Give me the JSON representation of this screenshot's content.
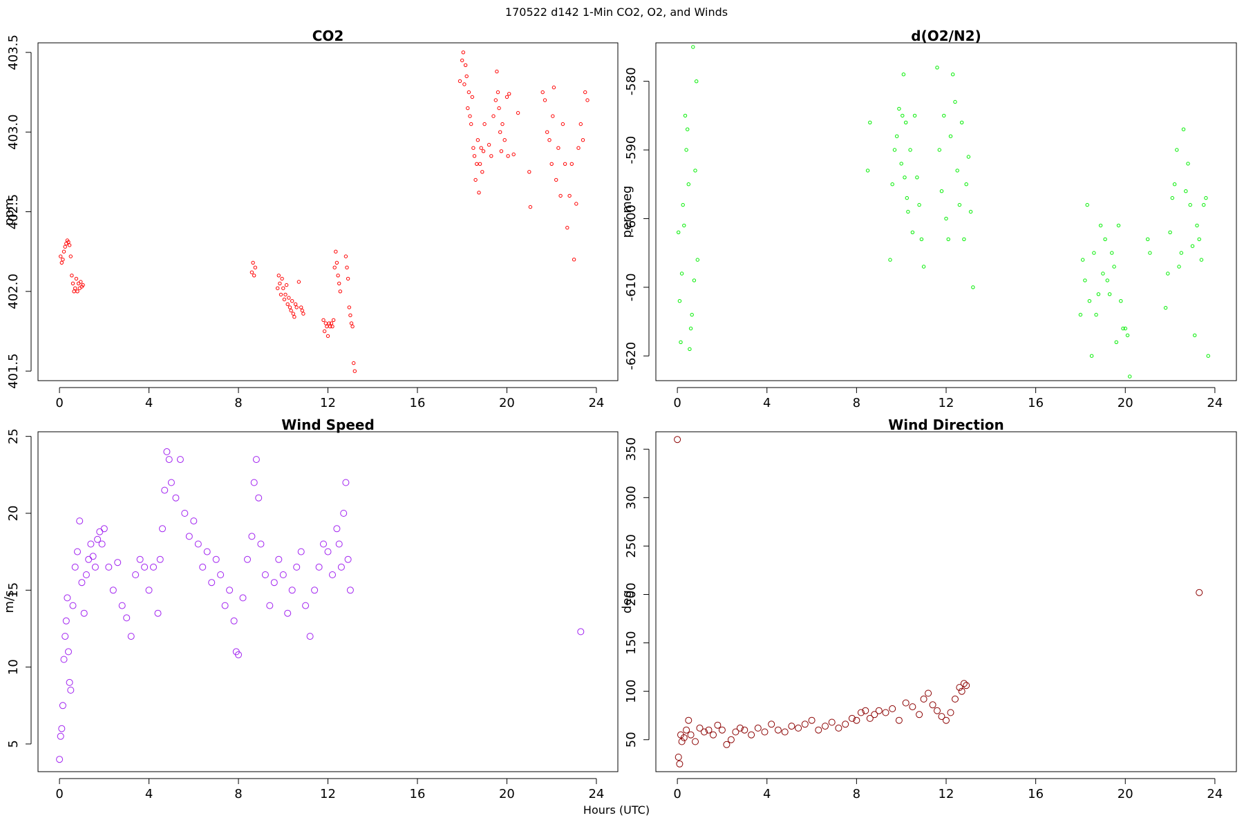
{
  "page": {
    "title": "170522   d142   1-Min CO2, O2, and Winds",
    "xlabel": "Hours (UTC)"
  },
  "chart_data": [
    {
      "type": "scatter",
      "title": "CO2",
      "xlabel": "",
      "ylabel": "ppm",
      "xlim": [
        -0.96,
        24.96
      ],
      "ylim": [
        401.44,
        403.56
      ],
      "xticks": [
        0,
        4,
        8,
        12,
        16,
        20,
        24
      ],
      "yticks": [
        401.5,
        402.0,
        402.5,
        403.0,
        403.5
      ],
      "yticklabels": [
        "401.5",
        "402.0",
        "402.5",
        "403.0",
        "403.5"
      ],
      "color": "#ff0000",
      "series": [
        {
          "x": [
            0.05,
            0.1,
            0.15,
            0.2,
            0.25,
            0.3,
            0.35,
            0.4,
            0.45,
            0.5,
            0.55,
            0.6,
            0.65,
            0.7,
            0.75,
            0.8,
            0.85,
            0.9,
            0.95,
            1.0,
            1.05
          ],
          "y": [
            402.22,
            402.18,
            402.2,
            402.25,
            402.28,
            402.3,
            402.32,
            402.31,
            402.29,
            402.22,
            402.1,
            402.05,
            402.0,
            402.02,
            402.08,
            402.0,
            402.05,
            402.02,
            402.06,
            402.03,
            402.04
          ]
        },
        {
          "x": [
            8.6,
            8.65,
            8.7,
            8.75,
            9.75,
            9.8,
            9.85,
            9.9,
            9.95,
            10.0,
            10.05,
            10.1,
            10.15,
            10.2,
            10.25,
            10.3,
            10.35,
            10.4,
            10.45,
            10.5,
            10.55,
            10.6,
            10.7,
            10.8,
            10.85,
            10.9
          ],
          "y": [
            402.12,
            402.18,
            402.1,
            402.15,
            402.02,
            402.1,
            402.05,
            401.98,
            402.08,
            402.02,
            401.95,
            401.98,
            402.04,
            401.92,
            401.96,
            401.9,
            401.88,
            401.94,
            401.86,
            401.84,
            401.92,
            401.9,
            402.06,
            401.9,
            401.88,
            401.86
          ]
        },
        {
          "x": [
            11.8,
            11.85,
            11.9,
            11.95,
            12.0,
            12.05,
            12.1,
            12.15,
            12.2,
            12.25,
            12.3,
            12.35,
            12.4,
            12.45,
            12.5,
            12.55,
            12.8,
            12.85,
            12.9,
            12.95,
            13.0,
            13.05,
            13.1,
            13.15,
            13.2
          ],
          "y": [
            401.82,
            401.75,
            401.8,
            401.78,
            401.72,
            401.8,
            401.78,
            401.8,
            401.78,
            401.82,
            402.15,
            402.25,
            402.18,
            402.1,
            402.05,
            402.0,
            402.22,
            402.15,
            402.08,
            401.9,
            401.85,
            401.8,
            401.78,
            401.55,
            401.5
          ]
        },
        {
          "x": [
            17.9,
            18.0,
            18.05,
            18.1,
            18.15,
            18.2,
            18.25,
            18.3,
            18.35,
            18.4,
            18.45,
            18.5,
            18.55,
            18.6,
            18.65,
            18.7,
            18.75,
            18.8,
            18.85,
            18.9,
            18.95,
            19.0,
            19.2,
            19.3,
            19.4,
            19.5,
            19.55,
            19.6,
            19.65,
            19.7,
            19.75,
            19.8,
            19.9,
            20.0,
            20.05,
            20.1,
            20.3,
            20.5
          ],
          "y": [
            403.32,
            403.45,
            403.5,
            403.3,
            403.42,
            403.35,
            403.15,
            403.25,
            403.1,
            403.05,
            403.22,
            402.9,
            402.85,
            402.7,
            402.8,
            402.95,
            402.62,
            402.8,
            402.9,
            402.75,
            402.88,
            403.05,
            402.92,
            402.85,
            403.1,
            403.2,
            403.38,
            403.25,
            403.15,
            403.0,
            402.88,
            403.05,
            402.95,
            403.22,
            402.85,
            403.24,
            402.86,
            403.12
          ]
        },
        {
          "x": [
            21.0,
            21.05,
            21.6,
            21.7,
            21.8,
            21.9,
            22.0,
            22.05,
            22.1,
            22.2,
            22.3,
            22.4,
            22.5,
            22.6,
            22.7,
            22.8,
            22.9,
            23.0,
            23.1,
            23.2,
            23.3,
            23.4,
            23.5,
            23.6
          ],
          "y": [
            402.75,
            402.53,
            403.25,
            403.2,
            403.0,
            402.95,
            402.8,
            403.1,
            403.28,
            402.7,
            402.9,
            402.6,
            403.05,
            402.8,
            402.4,
            402.6,
            402.8,
            402.2,
            402.55,
            402.9,
            403.05,
            402.95,
            403.25,
            403.2
          ]
        }
      ]
    },
    {
      "type": "scatter",
      "title": "d(O2/N2)",
      "xlabel": "",
      "ylabel": "per meg",
      "xlim": [
        -0.96,
        24.96
      ],
      "ylim": [
        -623.6,
        -574.4
      ],
      "xticks": [
        0,
        4,
        8,
        12,
        16,
        20,
        24
      ],
      "yticks": [
        -580,
        -590,
        -600,
        -610,
        -620
      ],
      "yticklabels": [
        "-580",
        "-590",
        "-600",
        "-610",
        "-620"
      ],
      "color": "#00ee00",
      "series": [
        {
          "x": [
            0.05,
            0.1,
            0.15,
            0.2,
            0.25,
            0.3,
            0.35,
            0.4,
            0.45,
            0.5,
            0.55,
            0.6,
            0.65,
            0.7,
            0.75,
            0.8,
            0.85,
            0.9
          ],
          "y": [
            -602,
            -612,
            -618,
            -608,
            -598,
            -601,
            -585,
            -590,
            -587,
            -595,
            -619,
            -616,
            -614,
            -575,
            -609,
            -593,
            -580,
            -606
          ]
        },
        {
          "x": [
            8.5,
            8.6,
            9.5,
            9.6,
            9.7,
            9.8,
            9.9,
            10.0,
            10.05,
            10.1,
            10.15,
            10.2,
            10.25,
            10.3,
            10.4,
            10.5,
            10.6,
            10.7,
            10.8,
            10.9,
            11.0,
            11.6,
            11.7,
            11.8,
            11.9,
            12.0,
            12.1,
            12.2,
            12.3,
            12.4,
            12.5,
            12.6,
            12.7,
            12.8,
            12.9,
            13.0,
            13.1,
            13.2
          ],
          "y": [
            -593,
            -586,
            -606,
            -595,
            -590,
            -588,
            -584,
            -592,
            -585,
            -579,
            -594,
            -586,
            -597,
            -599,
            -590,
            -602,
            -585,
            -594,
            -598,
            -603,
            -607,
            -578,
            -590,
            -596,
            -585,
            -600,
            -603,
            -588,
            -579,
            -583,
            -593,
            -598,
            -586,
            -603,
            -595,
            -591,
            -599,
            -610
          ]
        },
        {
          "x": [
            18.0,
            18.1,
            18.2,
            18.3,
            18.4,
            18.5,
            18.6,
            18.7,
            18.8,
            18.9,
            19.0,
            19.1,
            19.2,
            19.3,
            19.4,
            19.5,
            19.6,
            19.7,
            19.8,
            19.9,
            20.0,
            20.1,
            20.2
          ],
          "y": [
            -614,
            -606,
            -609,
            -598,
            -612,
            -620,
            -605,
            -614,
            -611,
            -601,
            -608,
            -603,
            -609,
            -611,
            -605,
            -607,
            -618,
            -601,
            -612,
            -616,
            -616,
            -617,
            -623
          ]
        },
        {
          "x": [
            21.0,
            21.1,
            21.8,
            21.9,
            22.0,
            22.1,
            22.2,
            22.3,
            22.4,
            22.5,
            22.6,
            22.7,
            22.8,
            22.9,
            23.0,
            23.1,
            23.2,
            23.3,
            23.4,
            23.5,
            23.6,
            23.7
          ],
          "y": [
            -603,
            -605,
            -613,
            -608,
            -602,
            -597,
            -595,
            -590,
            -607,
            -605,
            -587,
            -596,
            -592,
            -598,
            -604,
            -617,
            -601,
            -603,
            -606,
            -598,
            -597,
            -620
          ]
        }
      ]
    },
    {
      "type": "scatter",
      "title": "Wind Speed",
      "xlabel": "",
      "ylabel": "m/s",
      "xlim": [
        -0.96,
        24.96
      ],
      "ylim": [
        3.2,
        25.3
      ],
      "xticks": [
        0,
        4,
        8,
        12,
        16,
        20,
        24
      ],
      "yticks": [
        5,
        10,
        15,
        20,
        25
      ],
      "yticklabels": [
        "5",
        "10",
        "15",
        "20",
        "25"
      ],
      "color": "#a020f0",
      "series": [
        {
          "x": [
            0.0,
            0.05,
            0.1,
            0.15,
            0.2,
            0.25,
            0.3,
            0.35,
            0.4,
            0.45,
            0.5,
            0.6,
            0.7,
            0.8,
            0.9,
            1.0,
            1.1,
            1.2,
            1.3,
            1.4,
            1.5,
            1.6,
            1.7,
            1.8,
            1.9,
            2.0,
            2.2,
            2.4,
            2.6,
            2.8,
            3.0,
            3.2,
            3.4,
            3.6,
            3.8,
            4.0,
            4.2,
            4.4,
            4.5,
            4.6,
            4.7,
            4.8,
            4.9,
            5.0,
            5.2,
            5.4,
            5.6,
            5.8,
            6.0,
            6.2,
            6.4,
            6.6,
            6.8,
            7.0,
            7.2,
            7.4,
            7.6,
            7.8,
            7.9,
            8.0,
            8.2,
            8.4,
            8.6,
            8.7,
            8.8,
            8.9,
            9.0,
            9.2,
            9.4,
            9.6,
            9.8,
            10.0,
            10.2,
            10.4,
            10.6,
            10.8,
            11.0,
            11.2,
            11.4,
            11.6,
            11.8,
            12.0,
            12.2,
            12.4,
            12.5,
            12.6,
            12.7,
            12.8,
            12.9,
            13.0,
            23.3
          ],
          "y": [
            4.0,
            5.5,
            6.0,
            7.5,
            10.5,
            12.0,
            13.0,
            14.5,
            11.0,
            9.0,
            8.5,
            14.0,
            16.5,
            17.5,
            19.5,
            15.5,
            13.5,
            16.0,
            17.0,
            18.0,
            17.2,
            16.5,
            18.3,
            18.8,
            18.0,
            19.0,
            16.5,
            15.0,
            16.8,
            14.0,
            13.2,
            12.0,
            16.0,
            17.0,
            16.5,
            15.0,
            16.5,
            13.5,
            17.0,
            19.0,
            21.5,
            24.0,
            23.5,
            22.0,
            21.0,
            23.5,
            20.0,
            18.5,
            19.5,
            18.0,
            16.5,
            17.5,
            15.5,
            17.0,
            16.0,
            14.0,
            15.0,
            13.0,
            11.0,
            10.8,
            14.5,
            17.0,
            18.5,
            22.0,
            23.5,
            21.0,
            18.0,
            16.0,
            14.0,
            15.5,
            17.0,
            16.0,
            13.5,
            15.0,
            16.5,
            17.5,
            14.0,
            12.0,
            15.0,
            16.5,
            18.0,
            17.5,
            16.0,
            19.0,
            18.0,
            16.5,
            20.0,
            22.0,
            17.0,
            15.0,
            12.3
          ]
        }
      ]
    },
    {
      "type": "scatter",
      "title": "Wind Direction",
      "xlabel": "",
      "ylabel": "deg",
      "xlim": [
        -0.96,
        24.96
      ],
      "ylim": [
        17.0,
        368.0
      ],
      "xticks": [
        0,
        4,
        8,
        12,
        16,
        20,
        24
      ],
      "yticks": [
        50,
        100,
        150,
        200,
        250,
        300,
        350
      ],
      "yticklabels": [
        "50",
        "100",
        "150",
        "200",
        "250",
        "300",
        "350"
      ],
      "color": "#8b0000",
      "series": [
        {
          "x": [
            0.0,
            0.05,
            0.1,
            0.15,
            0.2,
            0.3,
            0.4,
            0.5,
            0.6,
            0.8,
            1.0,
            1.2,
            1.4,
            1.6,
            1.8,
            2.0,
            2.2,
            2.4,
            2.6,
            2.8,
            3.0,
            3.3,
            3.6,
            3.9,
            4.2,
            4.5,
            4.8,
            5.1,
            5.4,
            5.7,
            6.0,
            6.3,
            6.6,
            6.9,
            7.2,
            7.5,
            7.8,
            8.0,
            8.2,
            8.4,
            8.6,
            8.8,
            9.0,
            9.3,
            9.6,
            9.9,
            10.2,
            10.5,
            10.8,
            11.0,
            11.2,
            11.4,
            11.6,
            11.8,
            12.0,
            12.2,
            12.4,
            12.6,
            12.7,
            12.8,
            12.9,
            23.3
          ],
          "y": [
            360,
            32,
            25,
            55,
            48,
            52,
            60,
            70,
            55,
            48,
            62,
            58,
            60,
            55,
            65,
            60,
            45,
            50,
            58,
            62,
            60,
            55,
            62,
            58,
            66,
            60,
            58,
            64,
            62,
            66,
            70,
            60,
            64,
            68,
            62,
            66,
            72,
            70,
            78,
            80,
            72,
            76,
            80,
            78,
            82,
            70,
            88,
            84,
            76,
            92,
            98,
            86,
            80,
            74,
            70,
            78,
            92,
            104,
            100,
            108,
            106,
            202
          ]
        }
      ]
    }
  ]
}
